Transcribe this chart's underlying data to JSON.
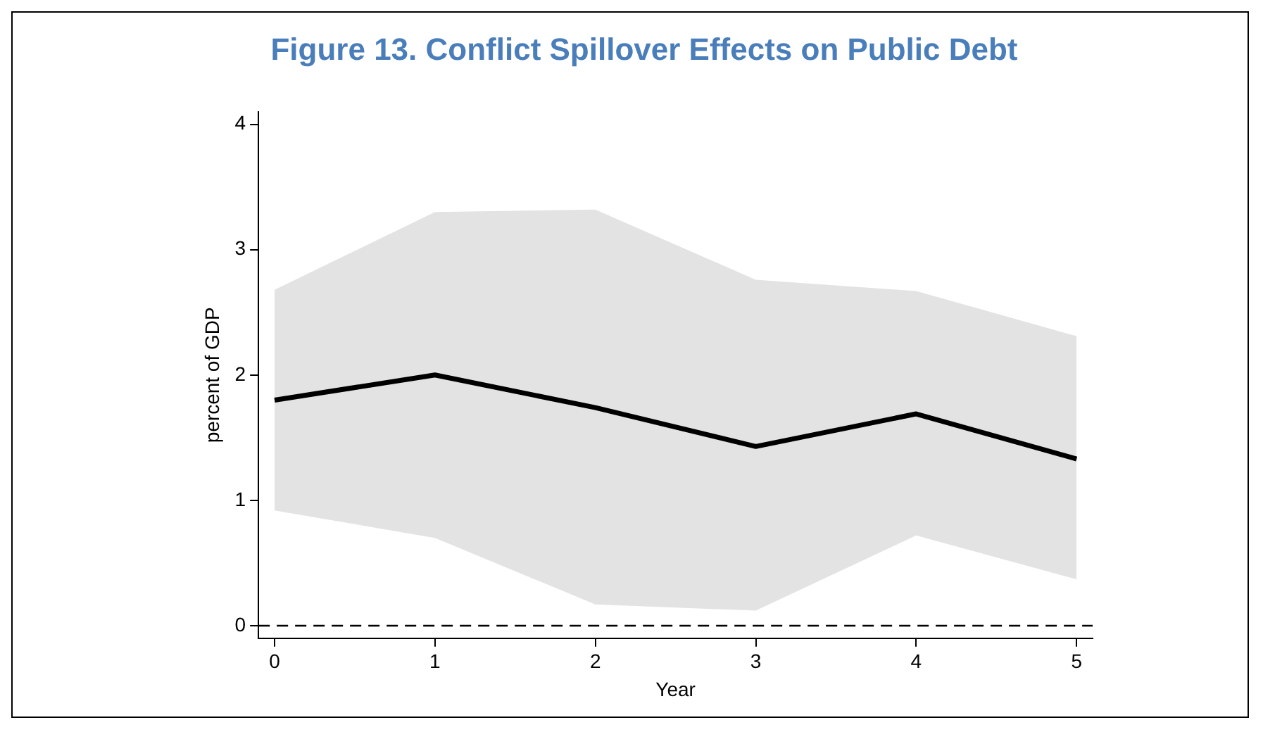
{
  "chart_data": {
    "type": "line",
    "title": "Figure 13. Conflict Spillover Effects on Public Debt",
    "xlabel": "Year",
    "ylabel": "percent of GDP",
    "x": [
      0,
      1,
      2,
      3,
      4,
      5
    ],
    "series": [
      {
        "color": "#000000",
        "values": [
          1.8,
          2.0,
          1.74,
          1.43,
          1.69,
          1.33
        ],
        "lower": [
          0.92,
          0.7,
          0.17,
          0.12,
          0.72,
          0.37
        ],
        "upper": [
          2.68,
          3.3,
          3.32,
          2.76,
          2.67,
          2.31
        ]
      }
    ],
    "xlim": [
      -0.1,
      5.1
    ],
    "ylim": [
      -0.1,
      4.1
    ],
    "xticks": [
      0,
      1,
      2,
      3,
      4,
      5
    ],
    "yticks": [
      0,
      1,
      2,
      3,
      4
    ],
    "ref_lines": [
      {
        "axis": "y",
        "value": 0,
        "line_style": "dashed",
        "color": "#000000"
      }
    ],
    "grid": false,
    "legend": false,
    "marker": "none",
    "line_style": "solid"
  }
}
